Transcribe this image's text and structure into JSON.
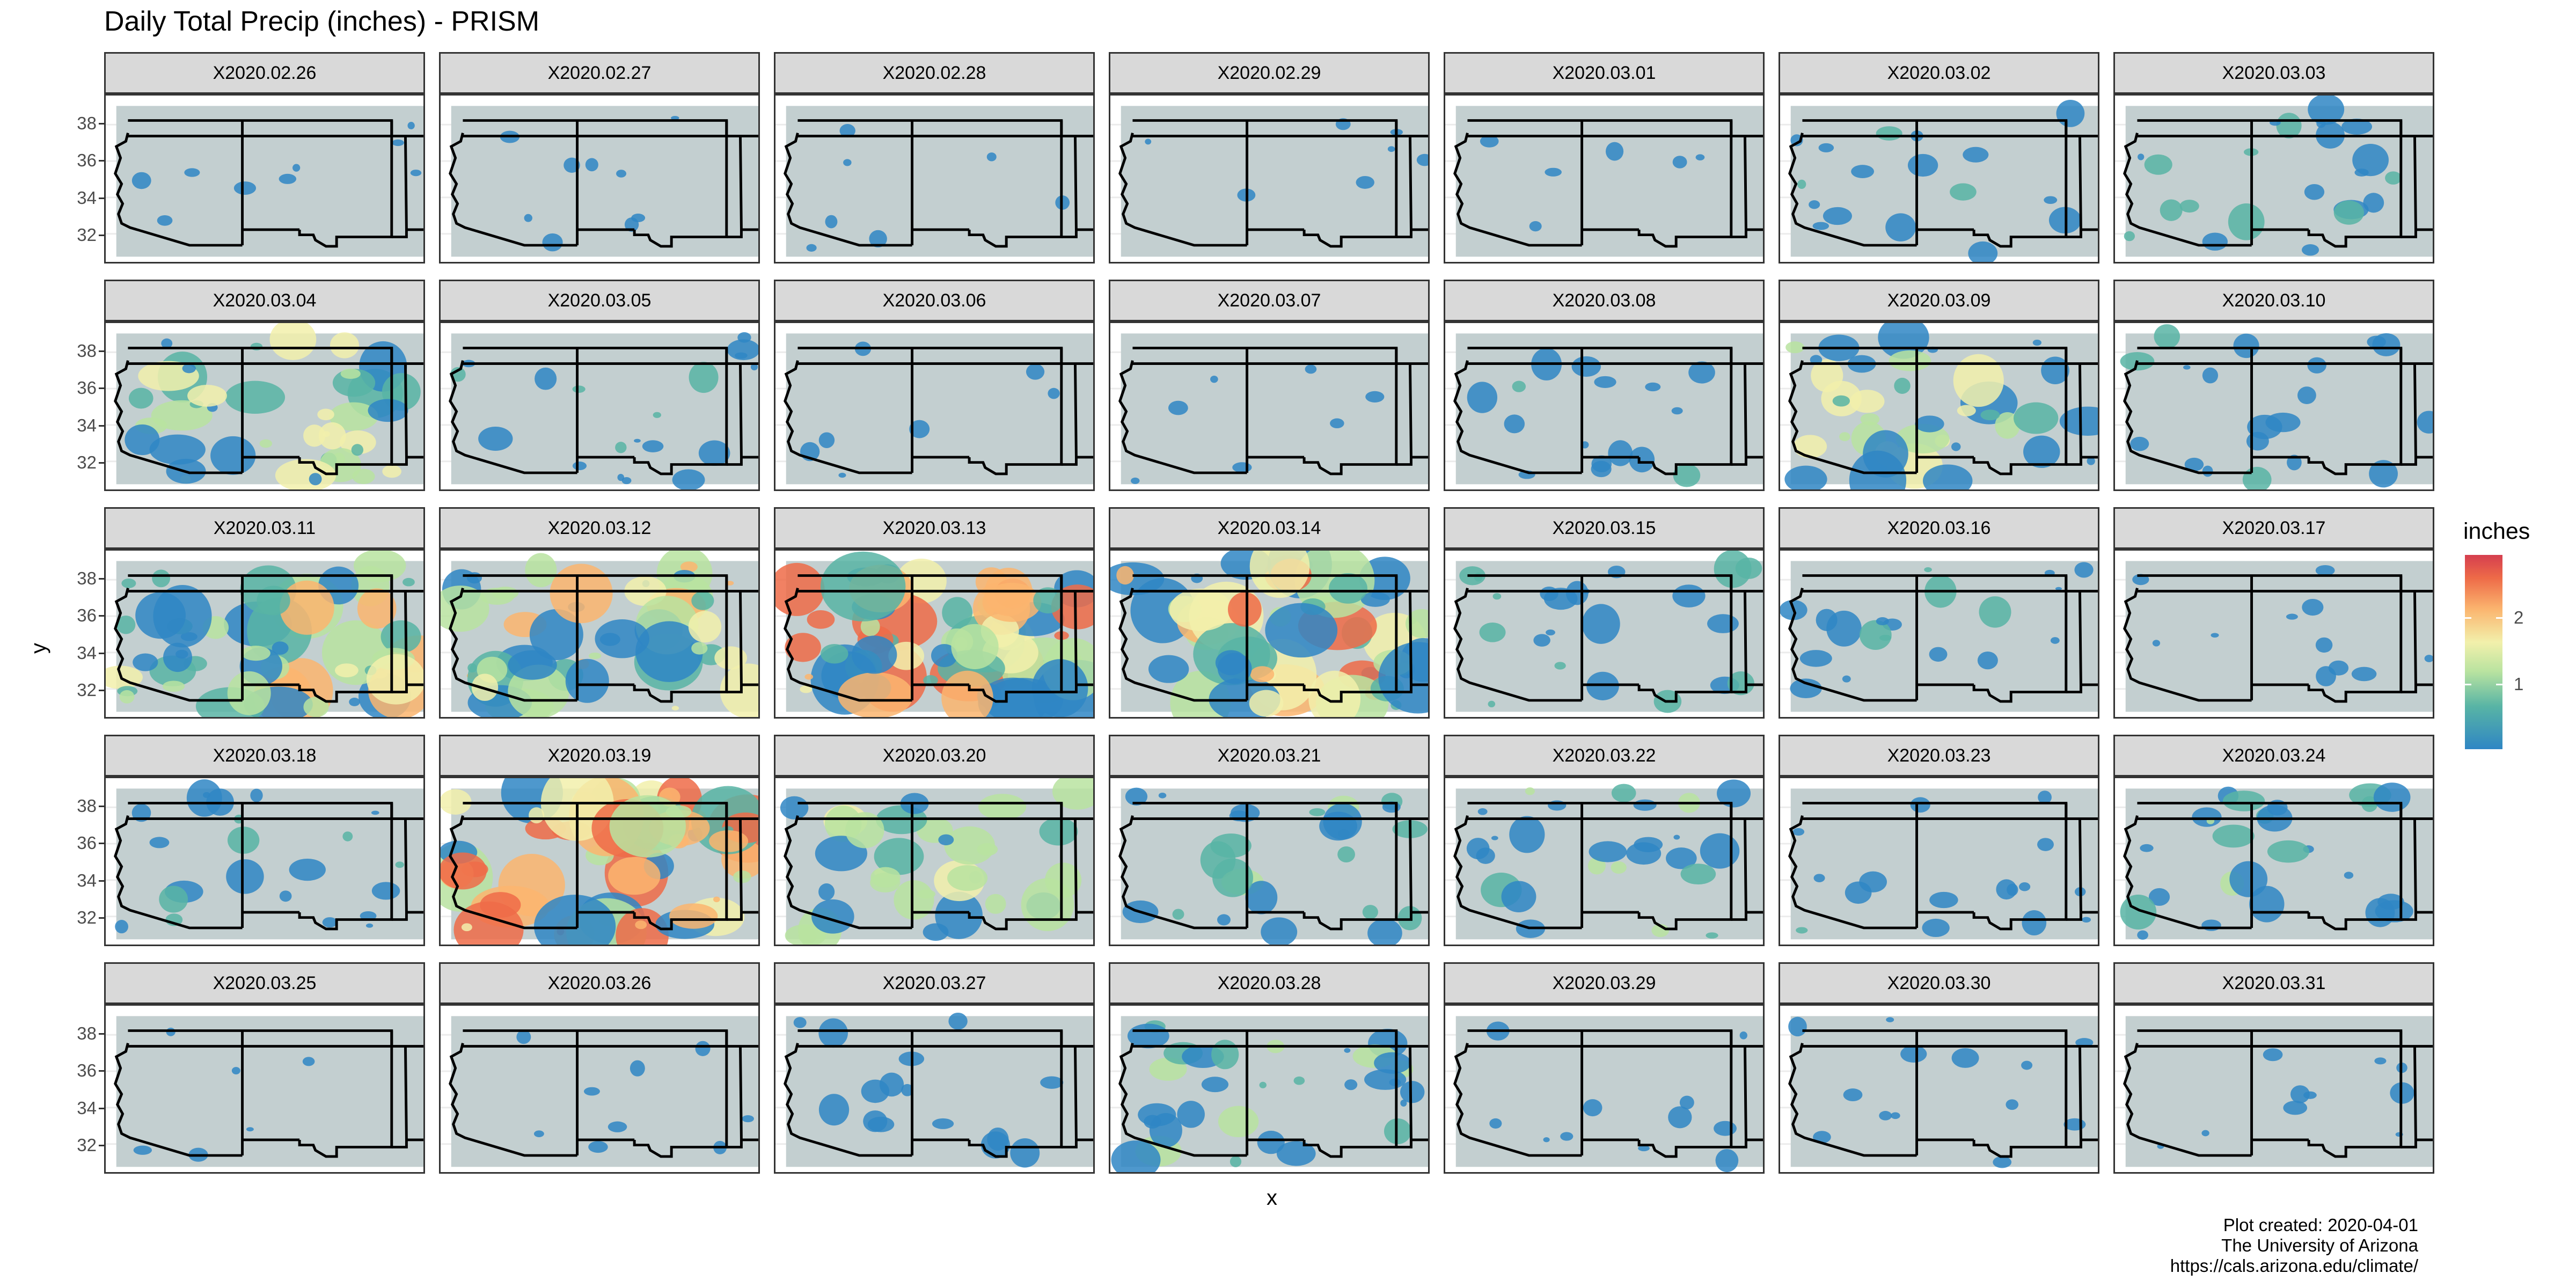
{
  "title": "Daily Total Precip (inches) - PRISM",
  "x_axis_label": "x",
  "y_axis_label": "y",
  "y_ticks": [
    "38",
    "36",
    "34",
    "32"
  ],
  "legend": {
    "title": "inches",
    "labels": [
      "2",
      "1"
    ],
    "colors": [
      "#2f86c4",
      "#58b4a5",
      "#b9e3a0",
      "#f2f0ab",
      "#fbb56f",
      "#ee6b48",
      "#d53e4f"
    ]
  },
  "panels": [
    {
      "label": "X2020.02.26",
      "intensity": 0.08
    },
    {
      "label": "X2020.02.27",
      "intensity": 0.08
    },
    {
      "label": "X2020.02.28",
      "intensity": 0.05
    },
    {
      "label": "X2020.02.29",
      "intensity": 0.05
    },
    {
      "label": "X2020.03.01",
      "intensity": 0.04
    },
    {
      "label": "X2020.03.02",
      "intensity": 0.22
    },
    {
      "label": "X2020.03.03",
      "intensity": 0.3
    },
    {
      "label": "X2020.03.04",
      "intensity": 0.6
    },
    {
      "label": "X2020.03.05",
      "intensity": 0.25
    },
    {
      "label": "X2020.03.06",
      "intensity": 0.05
    },
    {
      "label": "X2020.03.07",
      "intensity": 0.05
    },
    {
      "label": "X2020.03.08",
      "intensity": 0.2
    },
    {
      "label": "X2020.03.09",
      "intensity": 0.55
    },
    {
      "label": "X2020.03.10",
      "intensity": 0.25
    },
    {
      "label": "X2020.03.11",
      "intensity": 0.75
    },
    {
      "label": "X2020.03.12",
      "intensity": 0.7
    },
    {
      "label": "X2020.03.13",
      "intensity": 0.95
    },
    {
      "label": "X2020.03.14",
      "intensity": 0.85
    },
    {
      "label": "X2020.03.15",
      "intensity": 0.3
    },
    {
      "label": "X2020.03.16",
      "intensity": 0.25
    },
    {
      "label": "X2020.03.17",
      "intensity": 0.12
    },
    {
      "label": "X2020.03.18",
      "intensity": 0.3
    },
    {
      "label": "X2020.03.19",
      "intensity": 0.9
    },
    {
      "label": "X2020.03.20",
      "intensity": 0.5
    },
    {
      "label": "X2020.03.21",
      "intensity": 0.35
    },
    {
      "label": "X2020.03.22",
      "intensity": 0.35
    },
    {
      "label": "X2020.03.23",
      "intensity": 0.2
    },
    {
      "label": "X2020.03.24",
      "intensity": 0.35
    },
    {
      "label": "X2020.03.25",
      "intensity": 0.04
    },
    {
      "label": "X2020.03.26",
      "intensity": 0.08
    },
    {
      "label": "X2020.03.27",
      "intensity": 0.18
    },
    {
      "label": "X2020.03.28",
      "intensity": 0.45
    },
    {
      "label": "X2020.03.29",
      "intensity": 0.12
    },
    {
      "label": "X2020.03.30",
      "intensity": 0.15
    },
    {
      "label": "X2020.03.31",
      "intensity": 0.1
    }
  ],
  "caption": {
    "line1": "Plot created: 2020-04-01",
    "line2": "The University of Arizona",
    "line3": "https://cals.arizona.edu/climate/"
  }
}
